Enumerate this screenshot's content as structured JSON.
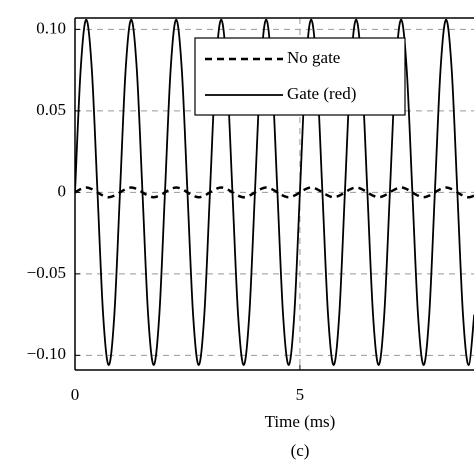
{
  "chart_data": {
    "type": "line",
    "x_label": "Time (ms)",
    "caption": "(c)",
    "x": [
      0,
      0.125,
      0.25,
      0.375,
      0.5,
      0.625,
      0.75,
      0.875,
      1,
      1.125,
      1.25,
      1.375,
      1.5,
      1.625,
      1.75,
      1.875,
      2,
      2.125,
      2.25,
      2.375,
      2.5,
      2.625,
      2.75,
      2.875,
      3,
      3.125,
      3.25,
      3.375,
      3.5,
      3.625,
      3.75,
      3.875,
      4,
      4.125,
      4.25,
      4.375,
      4.5,
      4.625,
      4.75,
      4.875,
      5,
      5.125,
      5.25,
      5.375,
      5.5,
      5.625,
      5.75,
      5.875,
      6,
      6.125,
      6.25,
      6.375,
      6.5,
      6.625,
      6.75,
      6.875,
      7,
      7.125,
      7.25,
      7.375,
      7.5,
      7.625,
      7.75,
      7.875,
      8,
      8.125,
      8.25,
      8.375,
      8.5,
      8.625,
      8.75,
      8.875
    ],
    "series": [
      {
        "name": "No gate",
        "color": "#000000",
        "linestyle": "dashed",
        "values": [
          0,
          0.002,
          0.003,
          0.002,
          0,
          -0.002,
          -0.003,
          -0.002,
          0,
          0.002,
          0.003,
          0.002,
          0,
          -0.002,
          -0.003,
          -0.002,
          0,
          0.002,
          0.003,
          0.002,
          0,
          -0.002,
          -0.003,
          -0.002,
          0,
          0.002,
          0.003,
          0.002,
          0,
          -0.002,
          -0.003,
          -0.002,
          0,
          0.002,
          0.003,
          0.002,
          0,
          -0.002,
          -0.003,
          -0.002,
          0,
          0.002,
          0.003,
          0.002,
          0,
          -0.002,
          -0.003,
          -0.002,
          0,
          0.002,
          0.003,
          0.002,
          0,
          -0.002,
          -0.003,
          -0.002,
          0,
          0.002,
          0.003,
          0.002,
          0,
          -0.002,
          -0.003,
          -0.002,
          0,
          0.002,
          0.003,
          0.002,
          0,
          -0.002,
          -0.003,
          -0.002
        ]
      },
      {
        "name": "Gate (red)",
        "color": "#000000",
        "linestyle": "solid",
        "values": [
          0,
          0.075,
          0.106,
          0.075,
          0,
          -0.075,
          -0.106,
          -0.075,
          0,
          0.075,
          0.106,
          0.075,
          0,
          -0.075,
          -0.106,
          -0.075,
          0,
          0.075,
          0.106,
          0.075,
          0,
          -0.075,
          -0.106,
          -0.075,
          0,
          0.075,
          0.106,
          0.075,
          0,
          -0.075,
          -0.106,
          -0.075,
          0,
          0.075,
          0.106,
          0.075,
          0,
          -0.075,
          -0.106,
          -0.075,
          0,
          0.075,
          0.106,
          0.075,
          0,
          -0.075,
          -0.106,
          -0.075,
          0,
          0.075,
          0.106,
          0.075,
          0,
          -0.075,
          -0.106,
          -0.075,
          0,
          0.075,
          0.106,
          0.075,
          0,
          -0.075,
          -0.106,
          -0.075,
          0,
          0.075,
          0.106,
          0.075,
          0,
          -0.075,
          -0.106,
          -0.075
        ]
      }
    ],
    "xlim": [
      0,
      8.87
    ],
    "ylim": [
      -0.109,
      0.107
    ],
    "xticks": [
      0,
      5
    ],
    "yticks": [
      {
        "value": 0.1,
        "label": "0.10"
      },
      {
        "value": 0.05,
        "label": "0.05"
      },
      0,
      {
        "value": -0.05,
        "label": "−0.05"
      },
      {
        "value": -0.1,
        "label": "−0.10"
      }
    ],
    "grid": true,
    "legend": "upper right"
  }
}
